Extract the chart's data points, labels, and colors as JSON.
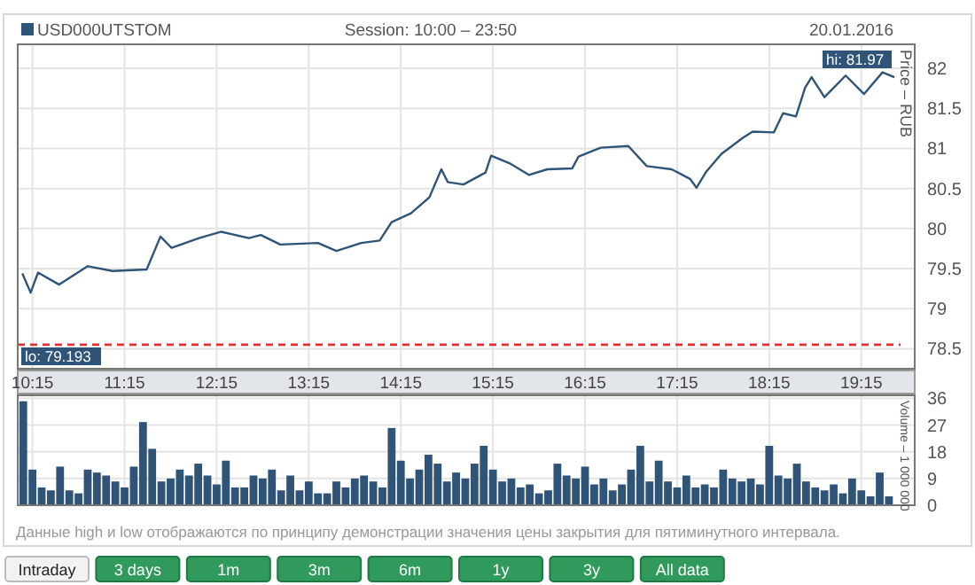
{
  "chart_data": [
    {
      "type": "line",
      "subtitle": "Session: 10:00 – 23:50",
      "ylabel": "Price – RUB",
      "legend": "top left",
      "grid": true,
      "annotations": [
        "20.01.2016",
        "hi: 81.97",
        "lo: 79.193"
      ],
      "xlim": [
        10.09,
        19.83
      ],
      "xticks": [
        {
          "value": 10.25,
          "label": "10:15"
        },
        {
          "value": 11.25,
          "label": "11:15"
        },
        {
          "value": 12.25,
          "label": "12:15"
        },
        {
          "value": 13.25,
          "label": "13:15"
        },
        {
          "value": 14.25,
          "label": "14:15"
        },
        {
          "value": 15.25,
          "label": "15:15"
        },
        {
          "value": 16.25,
          "label": "16:15"
        },
        {
          "value": 17.25,
          "label": "17:15"
        },
        {
          "value": 18.25,
          "label": "18:15"
        },
        {
          "value": 19.25,
          "label": "19:15"
        }
      ],
      "ylim": [
        78.25,
        82.3
      ],
      "yticks": [
        78.5,
        79,
        79.5,
        80,
        80.5,
        81,
        81.5,
        82
      ],
      "ref_lines": [
        {
          "axis": "y",
          "value": 78.55,
          "color": "#e03030",
          "line_style": "dashed"
        }
      ],
      "series": [
        {
          "name": "USD000UTSTOM",
          "color": "#2f5478",
          "x": [
            10.14,
            10.23,
            10.31,
            10.54,
            10.85,
            11.12,
            11.49,
            11.64,
            11.76,
            12.06,
            12.3,
            12.6,
            12.73,
            12.94,
            13.35,
            13.55,
            13.82,
            14.02,
            14.15,
            14.36,
            14.56,
            14.69,
            14.76,
            14.93,
            15.17,
            15.23,
            15.44,
            15.64,
            15.84,
            16.11,
            16.18,
            16.42,
            16.72,
            16.92,
            17.19,
            17.39,
            17.46,
            17.56,
            17.73,
            17.96,
            18.07,
            18.3,
            18.4,
            18.54,
            18.64,
            18.71,
            18.85,
            19.08,
            19.28,
            19.48,
            19.61
          ],
          "values": [
            79.44,
            79.2,
            79.45,
            79.3,
            79.53,
            79.47,
            79.49,
            79.9,
            79.76,
            79.88,
            79.96,
            79.88,
            79.92,
            79.8,
            79.82,
            79.72,
            79.82,
            79.85,
            80.08,
            80.19,
            80.39,
            80.74,
            80.58,
            80.55,
            80.7,
            80.91,
            80.81,
            80.67,
            80.74,
            80.75,
            80.9,
            81.01,
            81.03,
            80.78,
            80.74,
            80.62,
            80.51,
            80.7,
            80.93,
            81.13,
            81.21,
            81.2,
            81.44,
            81.4,
            81.76,
            81.89,
            81.64,
            81.91,
            81.68,
            81.95,
            81.89
          ]
        }
      ]
    },
    {
      "type": "bar",
      "ylabel": "Volume – 1 000 000",
      "grid": true,
      "tick_labels": "y",
      "annotations": [
        "Данные high и low отображаются по принципу демонстрации значения цены закрытия для пятиминутного интервала.",
        "Intraday",
        "3 days",
        "1m",
        "3m",
        "6m",
        "1y",
        "3y",
        "All data"
      ],
      "xlim": [
        10.09,
        19.83
      ],
      "xticks": [
        {
          "value": 10.25,
          "label": null
        },
        {
          "value": 11.25,
          "label": null
        },
        {
          "value": 12.25,
          "label": null
        },
        {
          "value": 13.25,
          "label": null
        },
        {
          "value": 14.25,
          "label": null
        },
        {
          "value": 15.25,
          "label": null
        },
        {
          "value": 16.25,
          "label": null
        },
        {
          "value": 17.25,
          "label": null
        },
        {
          "value": 18.25,
          "label": null
        },
        {
          "value": 19.25,
          "label": null
        }
      ],
      "ylim": [
        0,
        37
      ],
      "yticks": [
        0,
        9,
        18,
        27,
        36
      ],
      "series": [
        {
          "color": "#2f5478",
          "x": [
            10.15,
            10.25,
            10.35,
            10.45,
            10.55,
            10.65,
            10.75,
            10.85,
            10.95,
            11.05,
            11.15,
            11.25,
            11.35,
            11.45,
            11.55,
            11.65,
            11.75,
            11.85,
            11.95,
            12.05,
            12.15,
            12.25,
            12.35,
            12.45,
            12.55,
            12.65,
            12.75,
            12.85,
            12.95,
            13.05,
            13.15,
            13.25,
            13.35,
            13.45,
            13.55,
            13.65,
            13.75,
            13.85,
            13.95,
            14.05,
            14.15,
            14.25,
            14.35,
            14.45,
            14.55,
            14.65,
            14.75,
            14.85,
            14.95,
            15.05,
            15.15,
            15.25,
            15.35,
            15.45,
            15.55,
            15.65,
            15.75,
            15.85,
            15.95,
            16.05,
            16.15,
            16.25,
            16.35,
            16.45,
            16.55,
            16.65,
            16.75,
            16.85,
            16.95,
            17.05,
            17.15,
            17.25,
            17.35,
            17.45,
            17.55,
            17.65,
            17.75,
            17.85,
            17.95,
            18.05,
            18.15,
            18.25,
            18.35,
            18.45,
            18.55,
            18.65,
            18.75,
            18.85,
            18.95,
            19.05,
            19.15,
            19.25,
            19.35,
            19.45,
            19.55
          ],
          "values": [
            35,
            12,
            6,
            5,
            13,
            5,
            4,
            12,
            11,
            10,
            8,
            6,
            13,
            28,
            19,
            8,
            9,
            12,
            10,
            14,
            10,
            7,
            15,
            6,
            6,
            10,
            9,
            12,
            5,
            10,
            5,
            8,
            4,
            4,
            8,
            6,
            9,
            10,
            8,
            6,
            26,
            15,
            9,
            12,
            17,
            14,
            8,
            11,
            9,
            14,
            20,
            12,
            8,
            9,
            6,
            7,
            4,
            5,
            14,
            10,
            9,
            13,
            7,
            9,
            5,
            7,
            12,
            20,
            8,
            15,
            8,
            6,
            10,
            6,
            7,
            6,
            12,
            9,
            8,
            9,
            7,
            20,
            10,
            9,
            14,
            8,
            6,
            5,
            7,
            4,
            9,
            5,
            3,
            11,
            3
          ]
        }
      ]
    }
  ]
}
